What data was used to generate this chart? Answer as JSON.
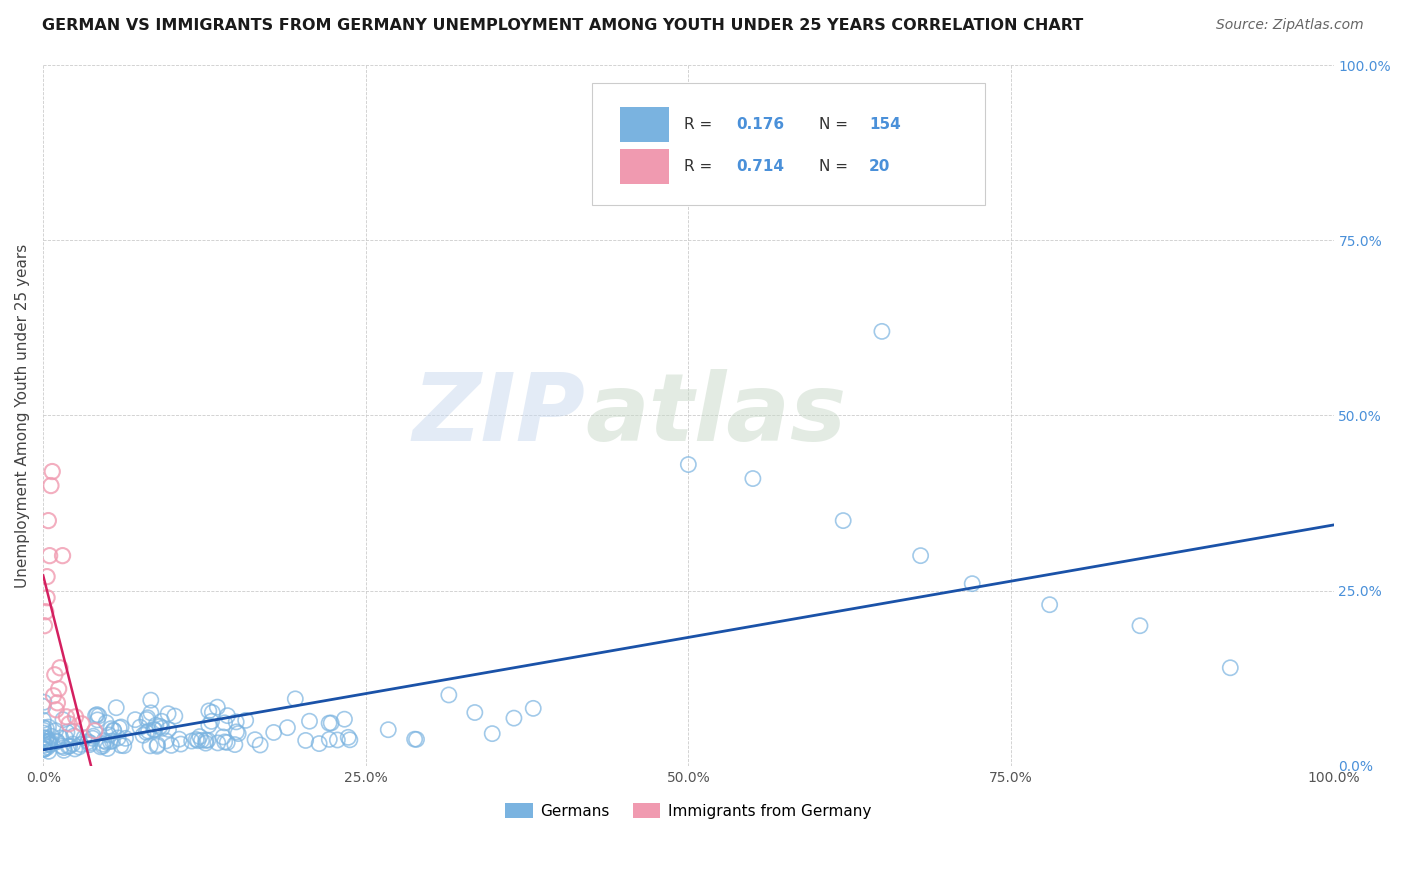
{
  "title": "GERMAN VS IMMIGRANTS FROM GERMANY UNEMPLOYMENT AMONG YOUTH UNDER 25 YEARS CORRELATION CHART",
  "source": "Source: ZipAtlas.com",
  "ylabel": "Unemployment Among Youth under 25 years",
  "watermark": "ZIPatlas",
  "legend_labels": [
    "Germans",
    "Immigrants from Germany"
  ],
  "blue_R": 0.176,
  "blue_N": 154,
  "pink_R": 0.714,
  "pink_N": 20,
  "blue_color": "#7ab3e0",
  "pink_color": "#f09ab0",
  "blue_line_color": "#1a52a8",
  "pink_line_color": "#d42060",
  "right_tick_color": "#4a90d9",
  "figsize": [
    14.06,
    8.92
  ],
  "dpi": 100
}
